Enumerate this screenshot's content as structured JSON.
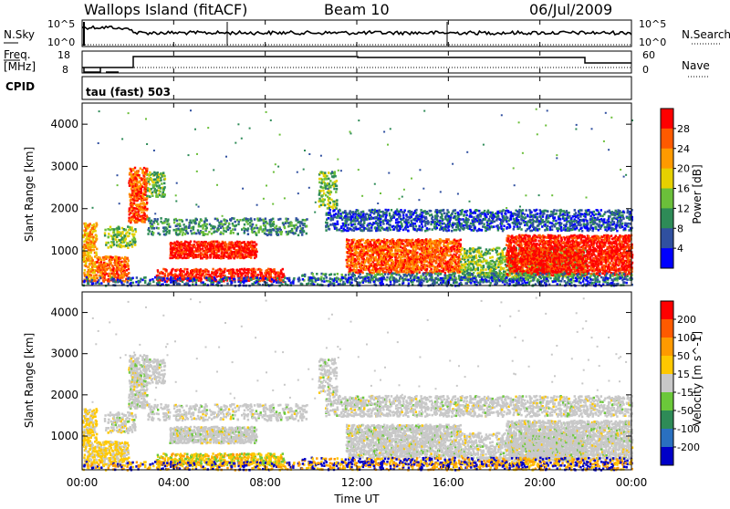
{
  "header": {
    "station": "Wallops Island (fitACF)",
    "beam": "Beam 10",
    "date": "06/Jul/2009"
  },
  "top_panel": {
    "nsky_label": "N.Sky",
    "nsky_ticks": [
      "10^5",
      "10^0"
    ],
    "nsearch_label": "N.Search",
    "nsearch_ticks": [
      "10^5",
      "10^0"
    ],
    "freq_label": "Freq.",
    "freq_unit": "[MHz]",
    "freq_ticks": [
      "18",
      "8"
    ],
    "nave_label": "Nave",
    "nave_ticks": [
      "60",
      "0"
    ],
    "cpid_label": "CPID",
    "cpid_value": "tau (fast) 503"
  },
  "chart_data": [
    {
      "type": "heatmap",
      "name": "power",
      "ylabel": "Slant Range [km]",
      "ylim": [
        180,
        4500
      ],
      "yticks": [
        1000,
        2000,
        3000,
        4000
      ],
      "xlim_hours": [
        0,
        24
      ],
      "colorbar_label": "Power [dB]",
      "colorbar_ticks": [
        "28",
        "24",
        "20",
        "16",
        "12",
        "8",
        "4"
      ],
      "colors": [
        "#0000ff",
        "#3050a0",
        "#2e8b57",
        "#6bbf3a",
        "#e6d000",
        "#ff9a00",
        "#ff5a00",
        "#ff0000"
      ]
    },
    {
      "type": "heatmap",
      "name": "velocity",
      "ylabel": "Slant Range [km]",
      "ylim": [
        180,
        4500
      ],
      "yticks": [
        1000,
        2000,
        3000,
        4000
      ],
      "xlim_hours": [
        0,
        24
      ],
      "colorbar_label": "Velocity [m s^-1]",
      "colorbar_ticks": [
        "200",
        "100",
        "50",
        "15",
        "-15",
        "-50",
        "-100",
        "-200"
      ],
      "colors": [
        "#0000c8",
        "#2a70c0",
        "#2e8b57",
        "#6bc83a",
        "#c8c8c8",
        "#ffc800",
        "#ff9a00",
        "#ff5a00",
        "#ff0000"
      ]
    }
  ],
  "xaxis": {
    "label": "Time UT",
    "ticks": [
      "00:00",
      "04:00",
      "08:00",
      "12:00",
      "16:00",
      "20:00",
      "00:00"
    ]
  }
}
